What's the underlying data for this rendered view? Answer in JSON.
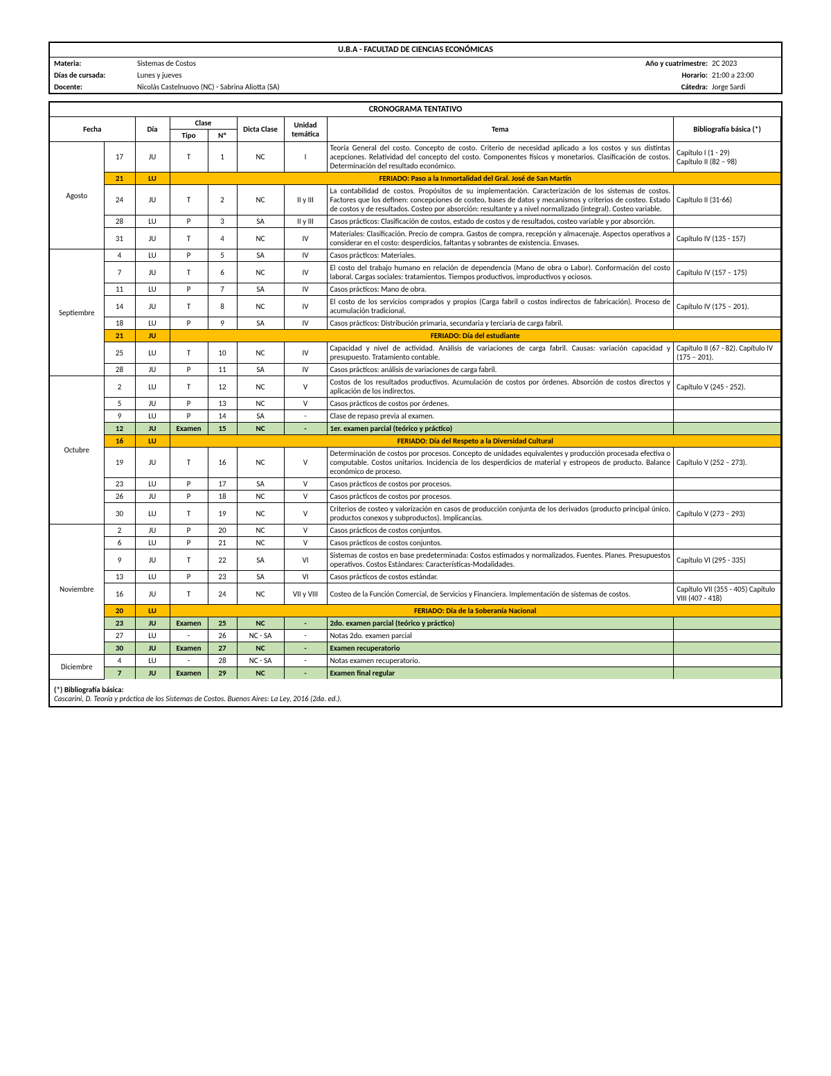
{
  "header": {
    "university": "U.B.A - FACULTAD DE CIENCIAS ECONÓMICAS",
    "materia_label": "Materia:",
    "materia": "Sistemas de Costos",
    "anyo_label": "Año y cuatrimestre:",
    "anyo": "2C 2023",
    "dias_label": "Días de cursada:",
    "dias": "Lunes y jueves",
    "horario_label": "Horario:",
    "horario": "21:00 a 23:00",
    "docente_label": "Docente:",
    "docente": "Nicolás Castelnuovo (NC) - Sabrina Aliotta (SA)",
    "catedra_label": "Cátedra:",
    "catedra": "Jorge Sardi"
  },
  "schedule_title": "CRONOGRAMA TENTATIVO",
  "columns": {
    "fecha": "Fecha",
    "dia": "Día",
    "clase": "Clase",
    "tipo": "Tipo",
    "num": "Nº",
    "dicta": "Dicta Clase",
    "unidad": "Unidad temática",
    "tema": "Tema",
    "biblio": "Bibliografía básica (*)"
  },
  "months": {
    "agosto": "Agosto",
    "septiembre": "Septiembre",
    "octubre": "Octubre",
    "noviembre": "Noviembre",
    "diciembre": "Diciembre"
  },
  "rows": [
    {
      "day": "17",
      "dow": "JU",
      "tipo": "T",
      "num": "1",
      "dicta": "NC",
      "unidad": "I",
      "tema": "Teoría General del costo. Concepto de costo. Criterio de necesidad aplicado a los costos y sus distintas acepciones. Relatividad del concepto del costo. Componentes físicos y monetarios. Clasificación de costos. Determinación del resultado económico.",
      "biblio": "Capítulo I (1 - 29)\nCapítulo II (82 – 98)"
    },
    {
      "day": "21",
      "dow": "LU",
      "feriado": "FERIADO: Paso a la Inmortalidad del Gral. José de San Martín",
      "cls": "orange"
    },
    {
      "day": "24",
      "dow": "JU",
      "tipo": "T",
      "num": "2",
      "dicta": "NC",
      "unidad": "II y III",
      "tema": "La contabilidad de costos. Propósitos de su implementación. Caracterización de los sistemas de costos. Factores que los definen: concepciones de costeo, bases de datos y mecanismos y criterios de costeo. Estado de costos y de resultados. Costeo por absorción: resultante y a nivel normalizado (integral). Costeo variable.",
      "biblio": "Capítulo II (31-66)"
    },
    {
      "day": "28",
      "dow": "LU",
      "tipo": "P",
      "num": "3",
      "dicta": "SA",
      "unidad": "II y III",
      "tema": "Casos prácticos: Clasificación de costos, estado de costos y de resultados, costeo variable y por absorción.",
      "biblio": ""
    },
    {
      "day": "31",
      "dow": "JU",
      "tipo": "T",
      "num": "4",
      "dicta": "NC",
      "unidad": "IV",
      "tema": "Materiales: Clasificación. Precio de compra. Gastos de compra, recepción y almacenaje. Aspectos operativos a considerar en el costo: desperdicios, faltantas y sobrantes de existencia. Envases.",
      "biblio": "Capítulo IV (135 - 157)"
    },
    {
      "day": "4",
      "dow": "LU",
      "tipo": "P",
      "num": "5",
      "dicta": "SA",
      "unidad": "IV",
      "tema": "Casos prácticos: Materiales.",
      "biblio": ""
    },
    {
      "day": "7",
      "dow": "JU",
      "tipo": "T",
      "num": "6",
      "dicta": "NC",
      "unidad": "IV",
      "tema": "El costo del trabajo humano en relación de dependencia (Mano de obra o Labor). Conformación del costo laboral. Cargas sociales: tratamientos. Tiempos productivos, improductivos y ociosos.",
      "biblio": "Capítulo IV (157 – 175)"
    },
    {
      "day": "11",
      "dow": "LU",
      "tipo": "P",
      "num": "7",
      "dicta": "SA",
      "unidad": "IV",
      "tema": "Casos prácticos: Mano de obra.",
      "biblio": ""
    },
    {
      "day": "14",
      "dow": "JU",
      "tipo": "T",
      "num": "8",
      "dicta": "NC",
      "unidad": "IV",
      "tema": "El costo de los servicios comprados y propios (Carga fabril o costos indirectos de fabricación). Proceso de acumulación tradicional.",
      "biblio": "Capítulo IV (175 – 201)."
    },
    {
      "day": "18",
      "dow": "LU",
      "tipo": "P",
      "num": "9",
      "dicta": "SA",
      "unidad": "IV",
      "tema": "Casos prácticos: Distribución primaria, secundaria y terciaria de carga fabril.",
      "biblio": ""
    },
    {
      "day": "21",
      "dow": "JU",
      "feriado": "FERIADO: Día del estudiante",
      "cls": "orange"
    },
    {
      "day": "25",
      "dow": "LU",
      "tipo": "T",
      "num": "10",
      "dicta": "NC",
      "unidad": "IV",
      "tema": "Capacidad y nivel de actividad. Análisis de variaciones de carga fabril. Causas: variación capacidad y presupuesto. Tratamiento contable.",
      "biblio": "Capítulo II (67 - 82). Capítulo IV (175 – 201)."
    },
    {
      "day": "28",
      "dow": "JU",
      "tipo": "P",
      "num": "11",
      "dicta": "SA",
      "unidad": "IV",
      "tema": "Casos prácticos: análisis de variaciones de carga fabril.",
      "biblio": ""
    },
    {
      "day": "2",
      "dow": "LU",
      "tipo": "T",
      "num": "12",
      "dicta": "NC",
      "unidad": "V",
      "tema": "Costos de los resultados productivos. Acumulación de costos por órdenes. Absorción de costos directos y aplicación de los indirectos.",
      "biblio": "Capítulo V (245 - 252)."
    },
    {
      "day": "5",
      "dow": "JU",
      "tipo": "P",
      "num": "13",
      "dicta": "NC",
      "unidad": "V",
      "tema": "Casos prácticos de costos por órdenes.",
      "biblio": ""
    },
    {
      "day": "9",
      "dow": "LU",
      "tipo": "P",
      "num": "14",
      "dicta": "SA",
      "unidad": "-",
      "tema": "Clase de repaso previa al examen.",
      "biblio": ""
    },
    {
      "day": "12",
      "dow": "JU",
      "tipo": "Examen",
      "num": "15",
      "dicta": "NC",
      "unidad": "-",
      "tema": "1er. examen parcial (teórico y práctico)",
      "biblio": "",
      "cls": "green"
    },
    {
      "day": "16",
      "dow": "LU",
      "feriado": "FERIADO: Día del Respeto a la Diversidad Cultural",
      "cls": "orange"
    },
    {
      "day": "19",
      "dow": "JU",
      "tipo": "T",
      "num": "16",
      "dicta": "NC",
      "unidad": "V",
      "tema": "Determinación de costos por procesos. Concepto de unidades equivalentes y producción procesada efectiva o computable. Costos unitarios. Incidencia de los desperdicios de material y estropeos de producto. Balance económico de proceso.",
      "biblio": "Capítulo V (252 – 273)."
    },
    {
      "day": "23",
      "dow": "LU",
      "tipo": "P",
      "num": "17",
      "dicta": "SA",
      "unidad": "V",
      "tema": "Casos prácticos de costos por procesos.",
      "biblio": ""
    },
    {
      "day": "26",
      "dow": "JU",
      "tipo": "P",
      "num": "18",
      "dicta": "NC",
      "unidad": "V",
      "tema": "Casos prácticos de costos por procesos.",
      "biblio": ""
    },
    {
      "day": "30",
      "dow": "LU",
      "tipo": "T",
      "num": "19",
      "dicta": "NC",
      "unidad": "V",
      "tema": "Criterios de costeo y valorización en casos de producción conjunta de los derivados (producto principal único, productos conexos y subproductos). Implicancias.",
      "biblio": "Capítulo V (273 – 293)"
    },
    {
      "day": "2",
      "dow": "JU",
      "tipo": "P",
      "num": "20",
      "dicta": "NC",
      "unidad": "V",
      "tema": "Casos prácticos de costos conjuntos.",
      "biblio": ""
    },
    {
      "day": "6",
      "dow": "LU",
      "tipo": "P",
      "num": "21",
      "dicta": "NC",
      "unidad": "V",
      "tema": "Casos prácticos de costos conjuntos.",
      "biblio": ""
    },
    {
      "day": "9",
      "dow": "JU",
      "tipo": "T",
      "num": "22",
      "dicta": "SA",
      "unidad": "VI",
      "tema": "Sistemas de costos en base predeterminada: Costos estimados y normalizados. Fuentes. Planes. Presupuestos operativos. Costos Estándares: Características-Modalidades.",
      "biblio": "Capítulo VI (295 - 335)"
    },
    {
      "day": "13",
      "dow": "LU",
      "tipo": "P",
      "num": "23",
      "dicta": "SA",
      "unidad": "VI",
      "tema": "Casos prácticos de costos estándar.",
      "biblio": ""
    },
    {
      "day": "16",
      "dow": "JU",
      "tipo": "T",
      "num": "24",
      "dicta": "NC",
      "unidad": "VII y VIII",
      "tema": "Costeo de la Función Comercial, de Servicios y Financiera. Implementación de sistemas de costos.",
      "biblio": "Capítulo VII (355 - 405) Capítulo VIII (407 - 418)"
    },
    {
      "day": "20",
      "dow": "LU",
      "feriado": "FERIADO: Día de la Soberanía Nacional",
      "cls": "orange"
    },
    {
      "day": "23",
      "dow": "JU",
      "tipo": "Examen",
      "num": "25",
      "dicta": "NC",
      "unidad": "-",
      "tema": "2do. examen parcial (teórico y práctico)",
      "biblio": "",
      "cls": "green"
    },
    {
      "day": "27",
      "dow": "LU",
      "tipo": "-",
      "num": "26",
      "dicta": "NC - SA",
      "unidad": "-",
      "tema": "Notas 2do. examen parcial",
      "biblio": ""
    },
    {
      "day": "30",
      "dow": "JU",
      "tipo": "Examen",
      "num": "27",
      "dicta": "NC",
      "unidad": "-",
      "tema": "Examen recuperatorio",
      "biblio": "",
      "cls": "green"
    },
    {
      "day": "4",
      "dow": "LU",
      "tipo": "-",
      "num": "28",
      "dicta": "NC - SA",
      "unidad": "-",
      "tema": "Notas examen recuperatorio.",
      "biblio": ""
    },
    {
      "day": "7",
      "dow": "JU",
      "tipo": "Examen",
      "num": "29",
      "dicta": "NC",
      "unidad": "-",
      "tema": "Examen final regular",
      "biblio": "",
      "cls": "green"
    }
  ],
  "footnote": {
    "title": "(*) Bibliografía básica:",
    "text": "Cascarini, D. Teoría y práctica de los Sistemas de Costos. Buenos Aires: La Ley, 2016 (2da. ed.)."
  },
  "month_map": [
    {
      "start": 0,
      "span": 5,
      "key": "agosto"
    },
    {
      "start": 5,
      "span": 8,
      "key": "septiembre"
    },
    {
      "start": 13,
      "span": 9,
      "key": "octubre"
    },
    {
      "start": 22,
      "span": 9,
      "key": "noviembre"
    },
    {
      "start": 31,
      "span": 2,
      "key": "diciembre"
    }
  ],
  "colors": {
    "orange": "#ffc000",
    "green": "#c6e0b4"
  }
}
